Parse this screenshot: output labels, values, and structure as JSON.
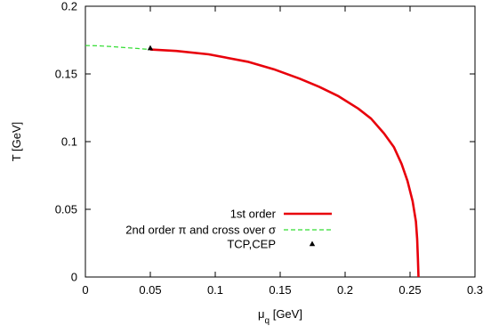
{
  "chart_data": {
    "type": "line",
    "xlabel": "μ",
    "xlabel_sub": "q",
    "xlabel_unit": " [GeV]",
    "ylabel": "T [GeV]",
    "xlim": [
      0,
      0.3
    ],
    "ylim": [
      0,
      0.2
    ],
    "xticks": [
      0,
      0.05,
      0.1,
      0.15,
      0.2,
      0.25,
      0.3
    ],
    "xtick_labels": [
      "0",
      "0.05",
      "0.1",
      "0.15",
      "0.2",
      "0.25",
      "0.3"
    ],
    "yticks": [
      0,
      0.05,
      0.1,
      0.15,
      0.2
    ],
    "ytick_labels": [
      "0",
      "0.05",
      "0.1",
      "0.15",
      "0.2"
    ],
    "grid": false,
    "legend_position": "bottom-center",
    "series": [
      {
        "name": "1st order",
        "style": "solid",
        "color": "#e8000b",
        "x": [
          0.05,
          0.07,
          0.095,
          0.125,
          0.145,
          0.165,
          0.18,
          0.195,
          0.21,
          0.22,
          0.23,
          0.2375,
          0.2435,
          0.248,
          0.252,
          0.2545,
          0.2555,
          0.256,
          0.2565
        ],
        "y": [
          0.168,
          0.167,
          0.1645,
          0.159,
          0.1535,
          0.1465,
          0.1405,
          0.1335,
          0.1245,
          0.117,
          0.106,
          0.096,
          0.0835,
          0.071,
          0.056,
          0.041,
          0.028,
          0.014,
          0.0
        ]
      },
      {
        "name": "2nd order π and cross over σ",
        "style": "dashed",
        "color": "#33dd33",
        "x": [
          0.0,
          0.01,
          0.02,
          0.03,
          0.04,
          0.05
        ],
        "y": [
          0.171,
          0.1708,
          0.1702,
          0.1695,
          0.1688,
          0.168
        ]
      },
      {
        "name": "TCP,CEP",
        "style": "point",
        "color": "#000000",
        "x": [
          0.05
        ],
        "y": [
          0.169
        ]
      }
    ]
  }
}
